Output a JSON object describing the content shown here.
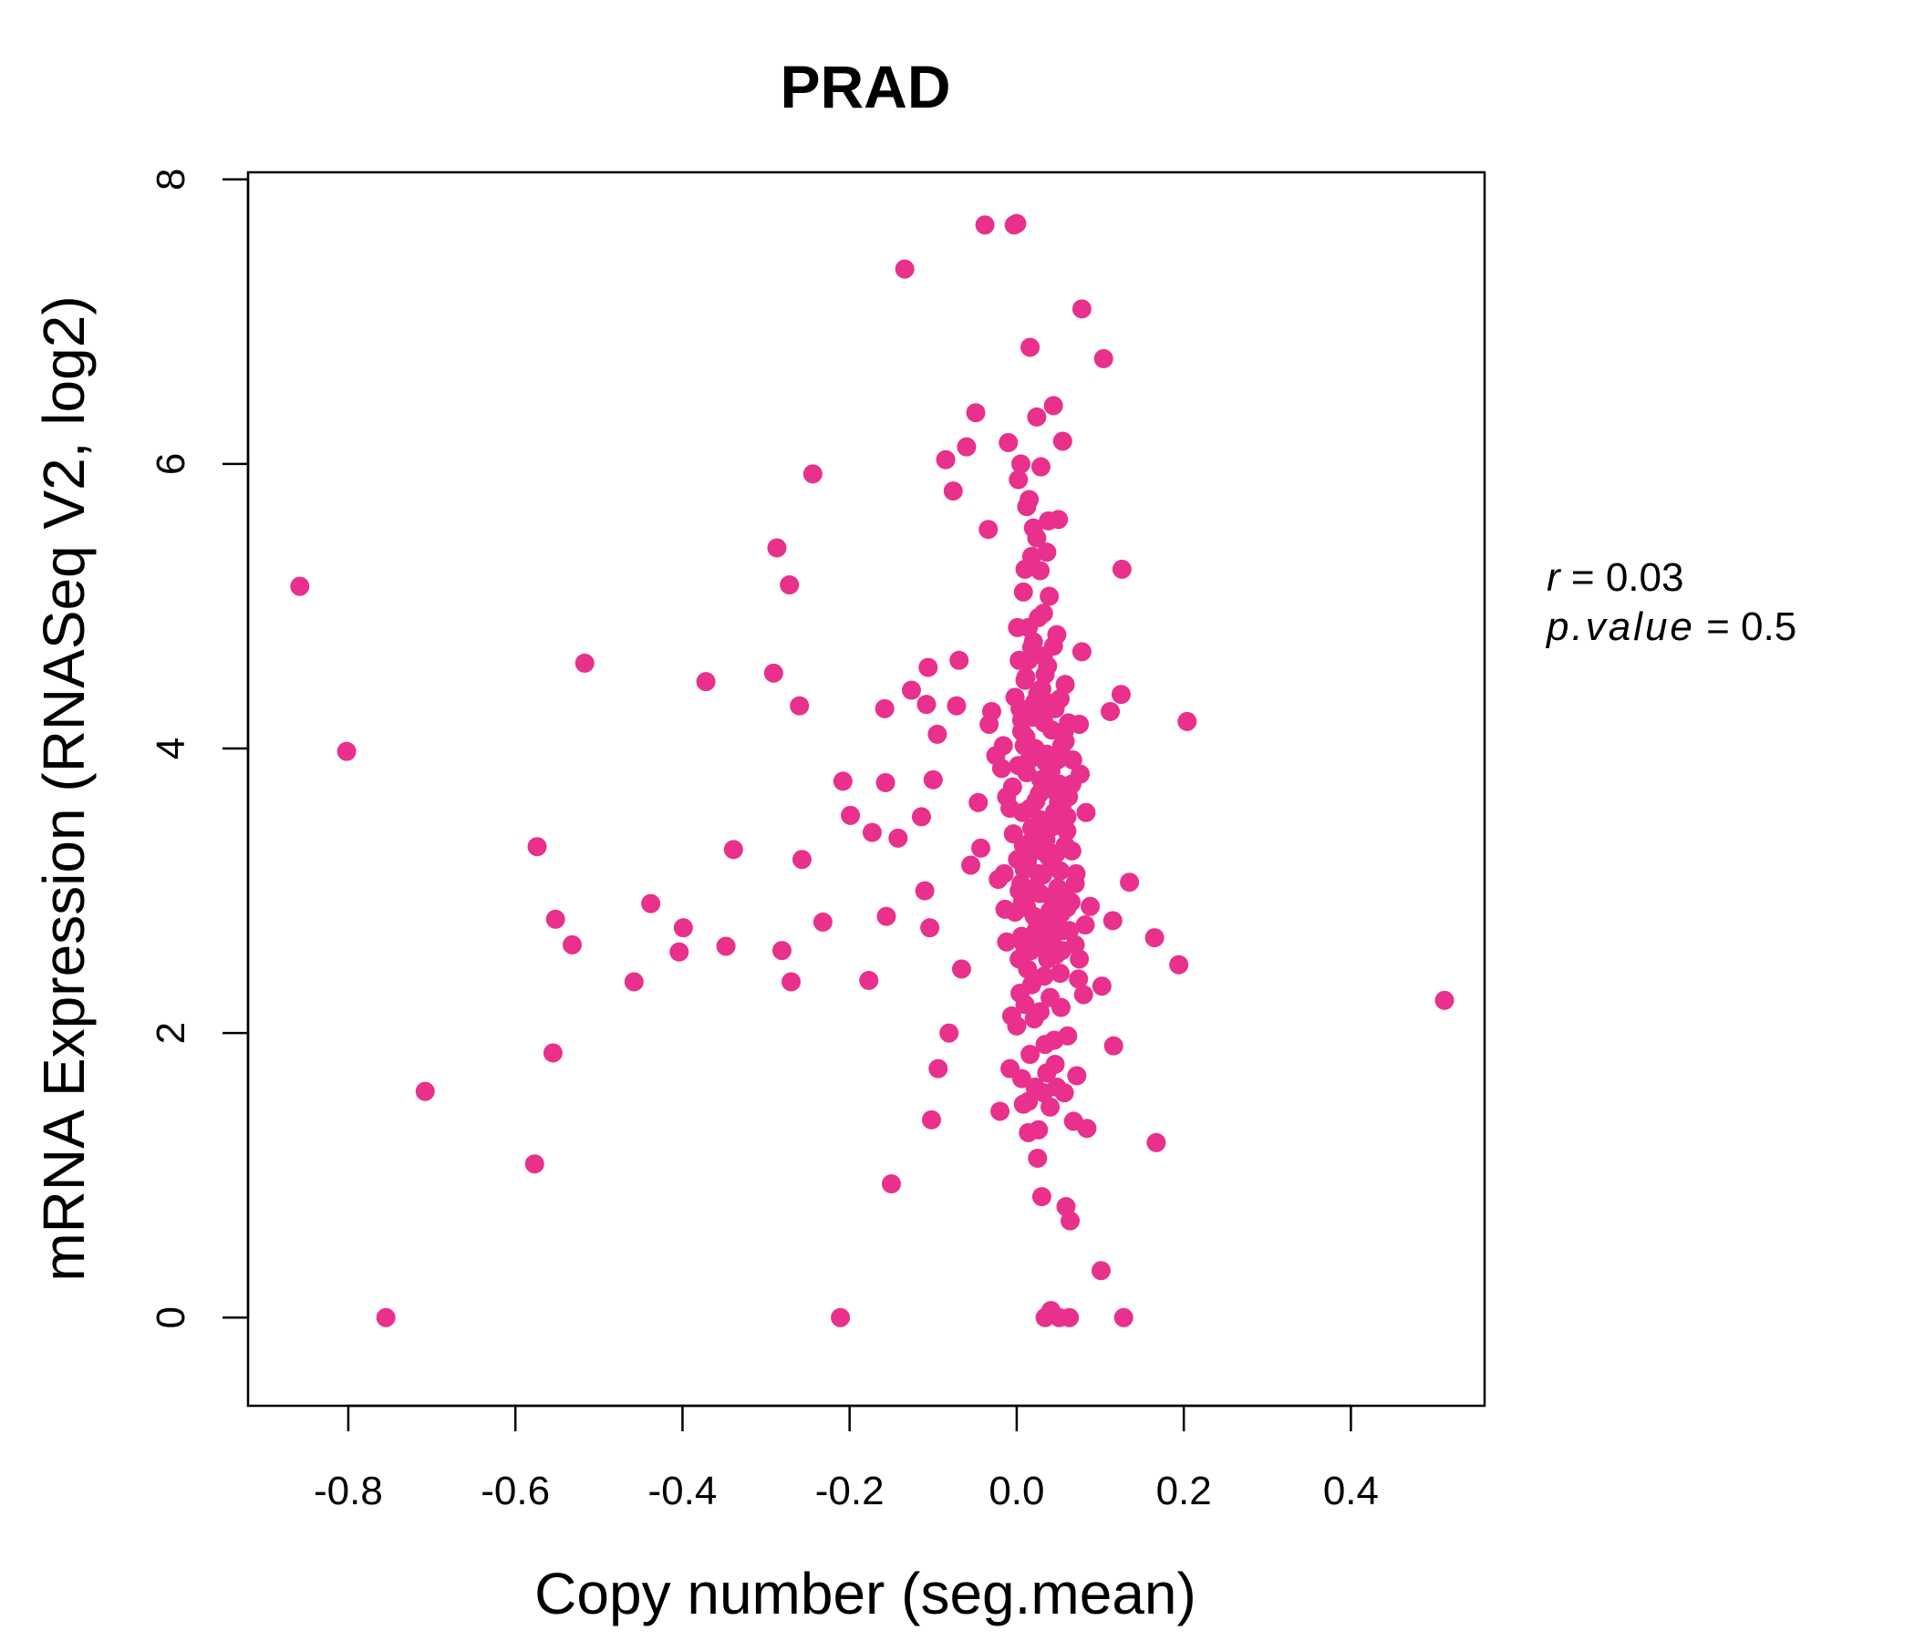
{
  "chart_data": {
    "type": "scatter",
    "title": "PRAD",
    "xlabel": "Copy number (seg.mean)",
    "ylabel": "mRNA Expression (RNASeq V2, log2)",
    "xlim": [
      -0.92,
      0.56
    ],
    "ylim": [
      -0.62,
      8.05
    ],
    "x_ticks": [
      -0.8,
      -0.6,
      -0.4,
      -0.2,
      0.0,
      0.2,
      0.4
    ],
    "x_tick_labels": [
      "-0.8",
      "-0.6",
      "-0.4",
      "-0.2",
      "0.0",
      "0.2",
      "0.4"
    ],
    "y_ticks": [
      0,
      2,
      4,
      6,
      8
    ],
    "y_tick_labels": [
      "0",
      "2",
      "4",
      "6",
      "8"
    ],
    "grid": false,
    "point_color": "#e8308c",
    "stats": {
      "r_label": "r",
      "r_value": "0.03",
      "p_label": "p.value",
      "p_value": "0.5"
    },
    "points": [
      [
        -0.858,
        5.14
      ],
      [
        -0.802,
        3.98
      ],
      [
        -0.755,
        0.0
      ],
      [
        -0.708,
        1.59
      ],
      [
        -0.577,
        1.08
      ],
      [
        -0.574,
        3.31
      ],
      [
        -0.555,
        1.86
      ],
      [
        -0.552,
        2.8
      ],
      [
        -0.532,
        2.62
      ],
      [
        -0.517,
        4.6
      ],
      [
        -0.458,
        2.36
      ],
      [
        -0.438,
        2.91
      ],
      [
        -0.404,
        2.57
      ],
      [
        -0.399,
        2.74
      ],
      [
        -0.372,
        4.47
      ],
      [
        -0.348,
        2.61
      ],
      [
        -0.339,
        3.29
      ],
      [
        -0.291,
        4.53
      ],
      [
        -0.287,
        5.41
      ],
      [
        -0.281,
        2.58
      ],
      [
        -0.272,
        5.15
      ],
      [
        -0.27,
        2.36
      ],
      [
        -0.26,
        4.3
      ],
      [
        -0.257,
        3.22
      ],
      [
        -0.244,
        5.93
      ],
      [
        -0.232,
        2.78
      ],
      [
        -0.211,
        0.0
      ],
      [
        -0.208,
        3.77
      ],
      [
        -0.199,
        3.53
      ],
      [
        -0.177,
        2.37
      ],
      [
        -0.173,
        3.41
      ],
      [
        -0.157,
        3.76
      ],
      [
        -0.156,
        2.82
      ],
      [
        -0.158,
        4.28
      ],
      [
        -0.15,
        0.94
      ],
      [
        -0.142,
        3.37
      ],
      [
        -0.134,
        7.37
      ],
      [
        -0.126,
        4.41
      ],
      [
        -0.114,
        3.52
      ],
      [
        -0.11,
        3.0
      ],
      [
        -0.108,
        4.31
      ],
      [
        -0.106,
        4.57
      ],
      [
        -0.104,
        2.74
      ],
      [
        -0.102,
        1.39
      ],
      [
        -0.1,
        3.78
      ],
      [
        -0.095,
        4.1
      ],
      [
        -0.094,
        1.75
      ],
      [
        -0.085,
        6.03
      ],
      [
        -0.081,
        2.0
      ],
      [
        -0.076,
        5.81
      ],
      [
        -0.072,
        4.3
      ],
      [
        -0.069,
        4.62
      ],
      [
        -0.066,
        2.45
      ],
      [
        -0.06,
        6.12
      ],
      [
        -0.055,
        3.18
      ],
      [
        -0.049,
        6.36
      ],
      [
        -0.046,
        3.62
      ],
      [
        -0.043,
        3.3
      ],
      [
        -0.038,
        7.68
      ],
      [
        -0.034,
        5.54
      ],
      [
        -0.033,
        4.17
      ],
      [
        -0.03,
        4.26
      ],
      [
        -0.025,
        3.95
      ],
      [
        -0.022,
        3.08
      ],
      [
        -0.02,
        1.45
      ],
      [
        -0.018,
        3.86
      ],
      [
        -0.016,
        4.02
      ],
      [
        -0.014,
        2.87
      ],
      [
        -0.012,
        3.66
      ],
      [
        -0.01,
        6.15
      ],
      [
        -0.008,
        1.75
      ],
      [
        -0.006,
        2.12
      ],
      [
        -0.005,
        3.73
      ],
      [
        -0.004,
        3.4
      ],
      [
        -0.003,
        7.68
      ],
      [
        -0.002,
        4.36
      ],
      [
        0.0,
        7.69
      ],
      [
        0.001,
        4.85
      ],
      [
        0.002,
        5.89
      ],
      [
        0.003,
        3.0
      ],
      [
        0.004,
        2.28
      ],
      [
        0.005,
        6.0
      ],
      [
        0.006,
        4.2
      ],
      [
        0.007,
        3.55
      ],
      [
        0.008,
        1.5
      ],
      [
        0.009,
        2.62
      ],
      [
        0.01,
        5.26
      ],
      [
        0.011,
        4.5
      ],
      [
        0.012,
        3.83
      ],
      [
        0.013,
        3.21
      ],
      [
        0.014,
        1.3
      ],
      [
        0.015,
        5.75
      ],
      [
        0.016,
        6.82
      ],
      [
        0.017,
        2.98
      ],
      [
        0.018,
        4.71
      ],
      [
        0.019,
        3.36
      ],
      [
        0.02,
        5.55
      ],
      [
        0.021,
        2.1
      ],
      [
        0.022,
        4.0
      ],
      [
        0.023,
        3.63
      ],
      [
        0.024,
        6.33
      ],
      [
        0.025,
        1.12
      ],
      [
        0.026,
        2.75
      ],
      [
        0.027,
        4.25
      ],
      [
        0.028,
        3.5
      ],
      [
        0.029,
        5.98
      ],
      [
        0.03,
        0.85
      ],
      [
        0.031,
        3.11
      ],
      [
        0.032,
        4.95
      ],
      [
        0.033,
        2.4
      ],
      [
        0.034,
        0.0
      ],
      [
        0.035,
        3.9
      ],
      [
        0.036,
        1.72
      ],
      [
        0.037,
        4.58
      ],
      [
        0.038,
        3.24
      ],
      [
        0.039,
        5.07
      ],
      [
        0.04,
        2.86
      ],
      [
        0.041,
        0.05
      ],
      [
        0.042,
        4.13
      ],
      [
        0.043,
        3.45
      ],
      [
        0.044,
        6.41
      ],
      [
        0.045,
        1.95
      ],
      [
        0.046,
        3.7
      ],
      [
        0.047,
        2.55
      ],
      [
        0.048,
        4.8
      ],
      [
        0.049,
        3.02
      ],
      [
        0.05,
        5.61
      ],
      [
        0.051,
        0.0
      ],
      [
        0.052,
        4.35
      ],
      [
        0.053,
        2.18
      ],
      [
        0.054,
        3.58
      ],
      [
        0.055,
        6.16
      ],
      [
        0.056,
        2.96
      ],
      [
        0.057,
        1.58
      ],
      [
        0.058,
        4.05
      ],
      [
        0.059,
        0.78
      ],
      [
        0.06,
        3.52
      ],
      [
        0.061,
        1.98
      ],
      [
        0.062,
        4.18
      ],
      [
        0.063,
        0.0
      ],
      [
        0.064,
        0.68
      ],
      [
        0.065,
        2.92
      ],
      [
        0.066,
        3.75
      ],
      [
        0.068,
        1.38
      ],
      [
        0.07,
        3.05
      ],
      [
        0.072,
        1.7
      ],
      [
        0.074,
        2.38
      ],
      [
        0.075,
        4.17
      ],
      [
        0.076,
        3.82
      ],
      [
        0.078,
        7.09
      ],
      [
        0.078,
        4.68
      ],
      [
        0.08,
        2.27
      ],
      [
        0.082,
        2.76
      ],
      [
        0.083,
        3.55
      ],
      [
        0.084,
        1.33
      ],
      [
        0.088,
        2.89
      ],
      [
        0.101,
        0.33
      ],
      [
        0.102,
        2.33
      ],
      [
        0.104,
        6.74
      ],
      [
        0.112,
        4.26
      ],
      [
        0.115,
        2.79
      ],
      [
        0.116,
        1.91
      ],
      [
        0.125,
        4.38
      ],
      [
        0.126,
        5.26
      ],
      [
        0.128,
        0.0
      ],
      [
        0.135,
        3.06
      ],
      [
        0.165,
        2.67
      ],
      [
        0.167,
        1.23
      ],
      [
        0.194,
        2.48
      ],
      [
        0.204,
        4.19
      ],
      [
        0.512,
        2.23
      ]
    ],
    "cluster_points": [
      [
        0.0,
        2.05
      ],
      [
        0.003,
        2.52
      ],
      [
        0.006,
        2.68
      ],
      [
        0.009,
        3.15
      ],
      [
        0.012,
        3.28
      ],
      [
        0.015,
        3.92
      ],
      [
        0.018,
        2.34
      ],
      [
        0.021,
        2.82
      ],
      [
        0.024,
        3.42
      ],
      [
        0.027,
        3.68
      ],
      [
        0.03,
        4.42
      ],
      [
        0.005,
        3.05
      ],
      [
        0.008,
        3.32
      ],
      [
        0.011,
        4.08
      ],
      [
        0.014,
        4.62
      ],
      [
        0.017,
        2.58
      ],
      [
        0.02,
        3.98
      ],
      [
        0.023,
        2.72
      ],
      [
        0.026,
        3.12
      ],
      [
        0.029,
        3.78
      ],
      [
        0.032,
        2.64
      ],
      [
        0.035,
        3.36
      ],
      [
        0.038,
        2.78
      ],
      [
        0.041,
        3.84
      ],
      [
        0.044,
        2.92
      ],
      [
        0.047,
        3.26
      ],
      [
        0.05,
        3.62
      ],
      [
        0.053,
        2.84
      ],
      [
        0.056,
        3.48
      ],
      [
        0.002,
        3.88
      ],
      [
        0.004,
        4.28
      ],
      [
        0.007,
        2.92
      ],
      [
        0.01,
        4.48
      ],
      [
        0.013,
        2.45
      ],
      [
        0.016,
        3.58
      ],
      [
        0.019,
        4.22
      ],
      [
        0.022,
        3.02
      ],
      [
        0.025,
        4.38
      ],
      [
        0.028,
        2.98
      ],
      [
        0.031,
        3.72
      ],
      [
        0.034,
        4.52
      ],
      [
        0.037,
        2.52
      ],
      [
        0.04,
        3.46
      ],
      [
        0.043,
        2.68
      ],
      [
        0.046,
        4.28
      ],
      [
        0.049,
        3.92
      ],
      [
        0.052,
        3.14
      ],
      [
        0.055,
        2.72
      ],
      [
        0.058,
        3.32
      ],
      [
        0.001,
        3.22
      ],
      [
        0.006,
        4.12
      ],
      [
        0.012,
        2.88
      ],
      [
        0.018,
        3.44
      ],
      [
        0.024,
        2.62
      ],
      [
        0.03,
        3.28
      ],
      [
        0.036,
        3.96
      ],
      [
        0.042,
        3.18
      ],
      [
        0.048,
        2.78
      ],
      [
        0.054,
        4.02
      ],
      [
        0.06,
        2.88
      ],
      [
        0.014,
        4.85
      ],
      [
        0.02,
        4.75
      ],
      [
        0.026,
        4.92
      ],
      [
        0.032,
        4.65
      ],
      [
        0.01,
        2.2
      ],
      [
        0.016,
        1.85
      ],
      [
        0.022,
        1.62
      ],
      [
        0.028,
        2.15
      ],
      [
        0.034,
        1.92
      ],
      [
        0.04,
        2.25
      ],
      [
        0.046,
        1.78
      ],
      [
        0.052,
        2.42
      ],
      [
        0.008,
        5.1
      ],
      [
        0.018,
        5.35
      ],
      [
        0.028,
        5.25
      ],
      [
        0.038,
        5.6
      ],
      [
        0.012,
        5.7
      ],
      [
        0.024,
        5.48
      ],
      [
        -0.008,
        3.58
      ],
      [
        -0.012,
        2.64
      ],
      [
        -0.015,
        3.12
      ],
      [
        -0.002,
        2.85
      ],
      [
        0.066,
        3.28
      ],
      [
        0.07,
        2.62
      ],
      [
        0.062,
        3.66
      ],
      [
        0.058,
        4.45
      ],
      [
        0.044,
        4.72
      ],
      [
        0.036,
        5.38
      ],
      [
        0.006,
        1.68
      ],
      [
        0.014,
        1.52
      ],
      [
        0.026,
        1.32
      ],
      [
        0.032,
        1.58
      ],
      [
        0.04,
        1.48
      ],
      [
        0.048,
        1.62
      ],
      [
        0.054,
        2.58
      ],
      [
        0.06,
        3.42
      ],
      [
        0.003,
        4.62
      ],
      [
        0.009,
        4.02
      ],
      [
        0.021,
        4.32
      ],
      [
        0.033,
        4.18
      ],
      [
        0.039,
        4.32
      ],
      [
        0.045,
        3.55
      ],
      [
        0.051,
        3.75
      ],
      [
        0.057,
        4.12
      ],
      [
        0.063,
        2.72
      ],
      [
        0.067,
        3.92
      ],
      [
        0.071,
        3.12
      ],
      [
        0.075,
        2.52
      ]
    ]
  }
}
